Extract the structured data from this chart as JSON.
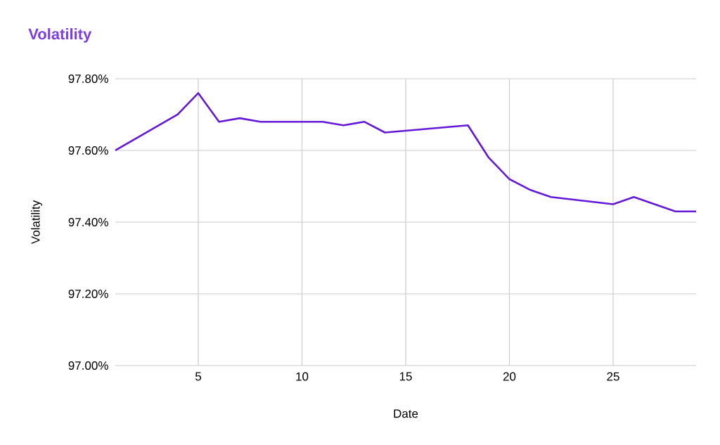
{
  "chart_data": {
    "type": "line",
    "title": "Volatility",
    "xlabel": "Date",
    "ylabel": "Volatility",
    "x": [
      1,
      4,
      5,
      6,
      7,
      8,
      11,
      12,
      13,
      14,
      18,
      19,
      20,
      21,
      22,
      25,
      26,
      28,
      29
    ],
    "series": [
      {
        "color": "#6419d6",
        "values": [
          97.6,
          97.7,
          97.76,
          97.68,
          97.69,
          97.68,
          97.68,
          97.67,
          97.68,
          97.65,
          97.67,
          97.58,
          97.52,
          97.49,
          97.47,
          97.45,
          97.47,
          97.43,
          97.43
        ]
      }
    ],
    "xlim": [
      1,
      29
    ],
    "xticks": [
      5,
      10,
      15,
      20,
      25
    ],
    "ylim": [
      97.0,
      97.8
    ],
    "yticks": [
      {
        "value": 97.0,
        "label": "97.00%"
      },
      {
        "value": 97.2,
        "label": "97.20%"
      },
      {
        "value": 97.4,
        "label": "97.40%"
      },
      {
        "value": 97.6,
        "label": "97.60%"
      },
      {
        "value": 97.8,
        "label": "97.80%"
      }
    ],
    "grid": true,
    "marker": "none",
    "line_style": "solid"
  }
}
